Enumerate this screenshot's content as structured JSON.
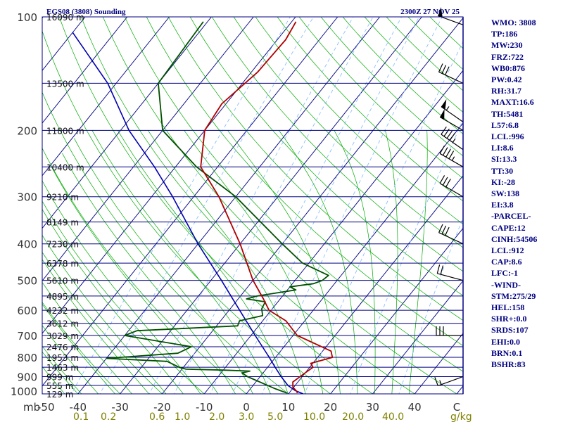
{
  "header": {
    "title": "EGS08 (3808) Sounding",
    "time": "2300Z 27 NOV 25"
  },
  "indices": [
    "WMO: 3808",
    "TP:186",
    "MW:230",
    "FRZ:722",
    "WB0:876",
    "PW:0.42",
    "RH:31.7",
    "MAXT:16.6",
    "TH:5481",
    "L57:6.8",
    "LCL:996",
    "LI:8.6",
    "SI:13.3",
    "TT:30",
    "KI:-28",
    "SW:138",
    "EI:3.8",
    "-PARCEL-",
    "CAPE:12",
    "CINH:54506",
    "LCL:912",
    "CAP:8.6",
    "LFC:-1",
    "-WIND-",
    "STM:275/29",
    "HEL:158",
    "SHR+:0.0",
    "SRDS:107",
    "EHI:0.0",
    "BRN:0.1",
    "BSHR:83"
  ],
  "colors": {
    "isobar": "#000080",
    "isotherm": "#000080",
    "dry_adiabat": "#00aa00",
    "moist_adiabat": "#00aa00",
    "mixing_ratio": "#8b8b8b",
    "temperature": "#b00000",
    "dewpoint": "#005000",
    "parcel": "#0000b0",
    "wind": "#000000",
    "ticklabel": "#333333",
    "mixing_label": "#808000"
  },
  "chart_data": {
    "type": "skew-t",
    "title": "EGS08 (3808) Sounding",
    "pressure_range": [
      1000,
      100
    ],
    "temperature_range": [
      -50,
      50
    ],
    "pressure_ticks": [
      100,
      200,
      300,
      400,
      500,
      600,
      700,
      800,
      900,
      1000
    ],
    "pressure_tick_labels": [
      "100",
      "200",
      "300",
      "400",
      "500",
      "600",
      "700",
      "800",
      "900",
      "1000"
    ],
    "pressure_axis_unit": "mb",
    "temperature_ticks": [
      -50,
      -40,
      -30,
      -20,
      -10,
      0,
      10,
      20,
      30,
      40,
      50
    ],
    "temperature_tick_labels": [
      "-50",
      "-40",
      "-30",
      "-20",
      "-10",
      "0",
      "10",
      "20",
      "30",
      "40",
      "C"
    ],
    "mixing_ratio_labels": [
      "0.1",
      "0.2",
      "0.6",
      "1.0",
      "2.0",
      "3.0",
      "5.0",
      "10.0",
      "20.0",
      "40.0"
    ],
    "mixing_ratio_unit": "g/kg",
    "height_labels": [
      {
        "p": 100,
        "label": "16090 m"
      },
      {
        "p": 150,
        "label": "13500 m"
      },
      {
        "p": 200,
        "label": "11800 m"
      },
      {
        "p": 250,
        "label": "10400 m"
      },
      {
        "p": 300,
        "label": "9210 m"
      },
      {
        "p": 350,
        "label": "8149 m"
      },
      {
        "p": 400,
        "label": "7230 m"
      },
      {
        "p": 450,
        "label": "6378 m"
      },
      {
        "p": 500,
        "label": "5610 m"
      },
      {
        "p": 550,
        "label": "4895 m"
      },
      {
        "p": 600,
        "label": "4232 m"
      },
      {
        "p": 650,
        "label": "3612 m"
      },
      {
        "p": 700,
        "label": "3029 m"
      },
      {
        "p": 750,
        "label": "2476 m"
      },
      {
        "p": 800,
        "label": "1953 m"
      },
      {
        "p": 850,
        "label": "1463 m"
      },
      {
        "p": 900,
        "label": "999 m"
      },
      {
        "p": 950,
        "label": "555 m"
      },
      {
        "p": 1000,
        "label": "129 m"
      }
    ],
    "temperature": [
      {
        "p": 995,
        "t": 12.0
      },
      {
        "p": 985,
        "t": 11.5
      },
      {
        "p": 960,
        "t": 9.8
      },
      {
        "p": 930,
        "t": 8.8
      },
      {
        "p": 880,
        "t": 10.0
      },
      {
        "p": 850,
        "t": 10.8
      },
      {
        "p": 830,
        "t": 9.5
      },
      {
        "p": 800,
        "t": 13.5
      },
      {
        "p": 770,
        "t": 12.0
      },
      {
        "p": 700,
        "t": 1.0
      },
      {
        "p": 640,
        "t": -4.5
      },
      {
        "p": 600,
        "t": -10.5
      },
      {
        "p": 560,
        "t": -14.0
      },
      {
        "p": 500,
        "t": -20.0
      },
      {
        "p": 400,
        "t": -30.0
      },
      {
        "p": 300,
        "t": -44.0
      },
      {
        "p": 250,
        "t": -54.0
      },
      {
        "p": 200,
        "t": -60.0
      },
      {
        "p": 170,
        "t": -61.0
      },
      {
        "p": 140,
        "t": -58.5
      },
      {
        "p": 115,
        "t": -58.0
      },
      {
        "p": 103,
        "t": -59.0
      }
    ],
    "dewpoint": [
      {
        "p": 995,
        "t": 9.5
      },
      {
        "p": 970,
        "t": 6.0
      },
      {
        "p": 950,
        "t": 3.5
      },
      {
        "p": 900,
        "t": -3.0
      },
      {
        "p": 880,
        "t": -5.0
      },
      {
        "p": 870,
        "t": -3.5
      },
      {
        "p": 865,
        "t": -10.0
      },
      {
        "p": 860,
        "t": -19.0
      },
      {
        "p": 850,
        "t": -21.0
      },
      {
        "p": 820,
        "t": -25.0
      },
      {
        "p": 805,
        "t": -40.0
      },
      {
        "p": 780,
        "t": -24.0
      },
      {
        "p": 750,
        "t": -22.0
      },
      {
        "p": 700,
        "t": -40.0
      },
      {
        "p": 680,
        "t": -38.0
      },
      {
        "p": 660,
        "t": -15.0
      },
      {
        "p": 640,
        "t": -15.5
      },
      {
        "p": 620,
        "t": -11.0
      },
      {
        "p": 595,
        "t": -12.5
      },
      {
        "p": 570,
        "t": -13.0
      },
      {
        "p": 560,
        "t": -18.0
      },
      {
        "p": 550,
        "t": -16.0
      },
      {
        "p": 530,
        "t": -8.0
      },
      {
        "p": 520,
        "t": -10.0
      },
      {
        "p": 510,
        "t": -5.0
      },
      {
        "p": 500,
        "t": -3.5
      },
      {
        "p": 485,
        "t": -3.0
      },
      {
        "p": 450,
        "t": -11.5
      },
      {
        "p": 400,
        "t": -20.0
      },
      {
        "p": 300,
        "t": -40.0
      },
      {
        "p": 250,
        "t": -55.0
      },
      {
        "p": 200,
        "t": -70.0
      },
      {
        "p": 150,
        "t": -80.0
      },
      {
        "p": 103,
        "t": -81.0
      }
    ],
    "parcel": [
      {
        "p": 1000,
        "t": 13.5
      },
      {
        "p": 980,
        "t": 11.0
      },
      {
        "p": 950,
        "t": 8.3
      },
      {
        "p": 900,
        "t": 5.0
      },
      {
        "p": 850,
        "t": 1.8
      },
      {
        "p": 800,
        "t": -1.5
      },
      {
        "p": 700,
        "t": -9.0
      },
      {
        "p": 600,
        "t": -17.5
      },
      {
        "p": 500,
        "t": -27.5
      },
      {
        "p": 400,
        "t": -40.0
      },
      {
        "p": 300,
        "t": -55.0
      },
      {
        "p": 250,
        "t": -65.0
      },
      {
        "p": 200,
        "t": -78.0
      },
      {
        "p": 150,
        "t": -92.0
      },
      {
        "p": 110,
        "t": -110.0
      }
    ],
    "wind_barbs": [
      {
        "p": 105,
        "dir": 290,
        "kt": 50
      },
      {
        "p": 150,
        "dir": 295,
        "kt": 30
      },
      {
        "p": 190,
        "dir": 305,
        "kt": 55
      },
      {
        "p": 200,
        "dir": 300,
        "kt": 50
      },
      {
        "p": 225,
        "dir": 305,
        "kt": 45
      },
      {
        "p": 250,
        "dir": 300,
        "kt": 45
      },
      {
        "p": 300,
        "dir": 300,
        "kt": 30
      },
      {
        "p": 400,
        "dir": 295,
        "kt": 30
      },
      {
        "p": 500,
        "dir": 285,
        "kt": 20
      },
      {
        "p": 700,
        "dir": 270,
        "kt": 30
      },
      {
        "p": 900,
        "dir": 250,
        "kt": 15
      }
    ]
  }
}
